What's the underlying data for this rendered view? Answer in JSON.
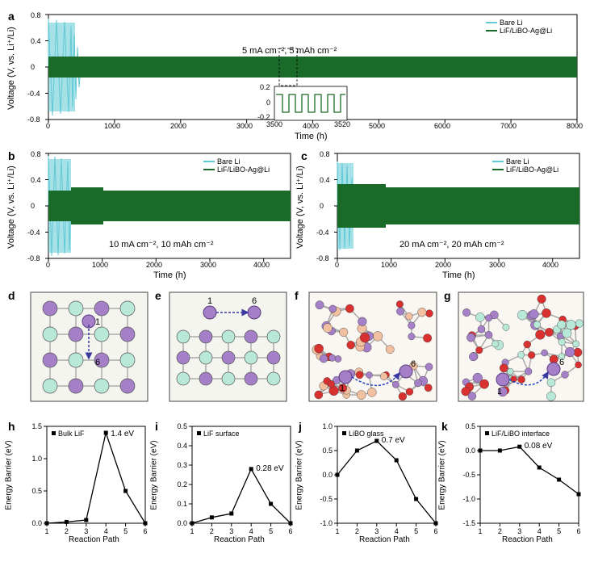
{
  "panel_a": {
    "label": "a",
    "type": "line",
    "ylabel": "Voltage (V, vs. Li⁺/Li)",
    "xlabel": "Time (h)",
    "ylim": [
      -0.8,
      0.8
    ],
    "yticks": [
      -0.8,
      -0.4,
      0.0,
      0.4,
      0.8
    ],
    "xlim": [
      0,
      8000
    ],
    "xticks": [
      0,
      1000,
      2000,
      3000,
      4000,
      5000,
      6000,
      7000,
      8000
    ],
    "series": [
      {
        "name": "Bare Li",
        "color": "#5fc9d6"
      },
      {
        "name": "LiF/LiBO-Ag@Li",
        "color": "#1a6b2a"
      }
    ],
    "annotation": "5 mA cm⁻², 5 mAh cm⁻²",
    "inset": {
      "xlim": [
        3500,
        3520
      ],
      "xticks": [
        3500,
        3520
      ],
      "ylim": [
        -0.2,
        0.2
      ],
      "yticks": [
        -0.2,
        0,
        0.2
      ]
    },
    "label_fontsize": 11,
    "tick_fontsize": 9,
    "background_color": "#ffffff",
    "axis_color": "#000000"
  },
  "panel_b": {
    "label": "b",
    "type": "line",
    "ylabel": "Voltage (V, vs. Li⁺/Li)",
    "xlabel": "Time (h)",
    "ylim": [
      -0.8,
      0.8
    ],
    "yticks": [
      -0.8,
      -0.4,
      0.0,
      0.4,
      0.8
    ],
    "xlim": [
      0,
      4500
    ],
    "xticks": [
      0,
      1000,
      2000,
      3000,
      4000
    ],
    "series": [
      {
        "name": "Bare Li",
        "color": "#5fc9d6"
      },
      {
        "name": "LiF/LiBO-Ag@Li",
        "color": "#1a6b2a"
      }
    ],
    "annotation": "10 mA cm⁻², 10 mAh cm⁻²",
    "label_fontsize": 11,
    "tick_fontsize": 9
  },
  "panel_c": {
    "label": "c",
    "type": "line",
    "ylabel": "Voltage (V, vs. Li⁺/Li)",
    "xlabel": "Time (h)",
    "ylim": [
      -0.8,
      0.8
    ],
    "yticks": [
      -0.8,
      -0.4,
      0.0,
      0.4,
      0.8
    ],
    "xlim": [
      0,
      4500
    ],
    "xticks": [
      0,
      1000,
      2000,
      3000,
      4000
    ],
    "series": [
      {
        "name": "Bare Li",
        "color": "#5fc9d6"
      },
      {
        "name": "LiF/LiBO-Ag@Li",
        "color": "#1a6b2a"
      }
    ],
    "annotation": "20 mA cm⁻², 20 mAh cm⁻²",
    "label_fontsize": 11,
    "tick_fontsize": 9
  },
  "panel_d": {
    "label": "d",
    "type": "diagram",
    "desc": "Bulk LiF lattice, sites 1 and 6",
    "atom1_color": "#a580c8",
    "atom2_color": "#b8e8d8",
    "site_labels": [
      "1",
      "6"
    ],
    "arrow_color": "#3a3aa0"
  },
  "panel_e": {
    "label": "e",
    "type": "diagram",
    "desc": "LiF surface, sites 1 and 6",
    "atom1_color": "#a580c8",
    "atom2_color": "#b8e8d8",
    "site_labels": [
      "1",
      "6"
    ],
    "arrow_color": "#3a3aa0"
  },
  "panel_f": {
    "label": "f",
    "type": "diagram",
    "desc": "LiBO glass network, sites 1 and 6",
    "colors": [
      "#d93030",
      "#f0c0a0",
      "#a580c8"
    ],
    "site_labels": [
      "1",
      "6"
    ],
    "arrow_color": "#2040c0"
  },
  "panel_g": {
    "label": "g",
    "type": "diagram",
    "desc": "LiF/LiBO interface network, sites 1 and 6",
    "colors": [
      "#d93030",
      "#b8e8d8",
      "#a580c8"
    ],
    "site_labels": [
      "1",
      "6"
    ],
    "arrow_color": "#2040c0"
  },
  "panel_h": {
    "label": "h",
    "type": "line",
    "ylabel": "Energy Barrier (eV)",
    "xlabel": "Reaction Path",
    "xlim": [
      1,
      6
    ],
    "xticks": [
      1,
      2,
      3,
      4,
      5,
      6
    ],
    "ylim": [
      0.0,
      1.5
    ],
    "yticks": [
      0.0,
      0.5,
      1.0,
      1.5
    ],
    "series_name": "Bulk LiF",
    "data": [
      [
        1,
        0.0
      ],
      [
        2,
        0.02
      ],
      [
        3,
        0.05
      ],
      [
        4,
        1.4
      ],
      [
        5,
        0.5
      ],
      [
        6,
        0.0
      ]
    ],
    "peak_label": "1.4 eV",
    "marker": "square",
    "line_color": "#000000",
    "marker_size": 5
  },
  "panel_i": {
    "label": "i",
    "type": "line",
    "ylabel": "Energy Barrier (eV)",
    "xlabel": "Reaction Path",
    "xlim": [
      1,
      6
    ],
    "xticks": [
      1,
      2,
      3,
      4,
      5,
      6
    ],
    "ylim": [
      0.0,
      0.5
    ],
    "yticks": [
      0.0,
      0.1,
      0.2,
      0.3,
      0.4,
      0.5
    ],
    "series_name": "LiF surface",
    "data": [
      [
        1,
        0.0
      ],
      [
        2,
        0.03
      ],
      [
        3,
        0.05
      ],
      [
        4,
        0.28
      ],
      [
        5,
        0.1
      ],
      [
        6,
        0.0
      ]
    ],
    "peak_label": "0.28 eV",
    "marker": "square",
    "line_color": "#000000",
    "marker_size": 5
  },
  "panel_j": {
    "label": "j",
    "type": "line",
    "ylabel": "Energy Barrier (eV)",
    "xlabel": "Reaction Path",
    "xlim": [
      1,
      6
    ],
    "xticks": [
      1,
      2,
      3,
      4,
      5,
      6
    ],
    "ylim": [
      -1.0,
      1.0
    ],
    "yticks": [
      -1.0,
      -0.5,
      0.0,
      0.5,
      1.0
    ],
    "series_name": "LiBO glass",
    "data": [
      [
        1,
        0.0
      ],
      [
        2,
        0.5
      ],
      [
        3,
        0.7
      ],
      [
        4,
        0.3
      ],
      [
        5,
        -0.5
      ],
      [
        6,
        -1.0
      ]
    ],
    "peak_label": "0.7 eV",
    "marker": "square",
    "line_color": "#000000",
    "marker_size": 5
  },
  "panel_k": {
    "label": "k",
    "type": "line",
    "ylabel": "Energy Barrier (eV)",
    "xlabel": "Reaction Path",
    "xlim": [
      1,
      6
    ],
    "xticks": [
      1,
      2,
      3,
      4,
      5,
      6
    ],
    "ylim": [
      -1.5,
      0.5
    ],
    "yticks": [
      -1.5,
      -1.0,
      -0.5,
      0.0,
      0.5
    ],
    "series_name": "LiF/LiBO interface",
    "data": [
      [
        1,
        0.0
      ],
      [
        2,
        0.0
      ],
      [
        3,
        0.08
      ],
      [
        4,
        -0.35
      ],
      [
        5,
        -0.6
      ],
      [
        6,
        -0.9
      ]
    ],
    "peak_label": "0.08 eV",
    "marker": "square",
    "line_color": "#000000",
    "marker_size": 5
  }
}
